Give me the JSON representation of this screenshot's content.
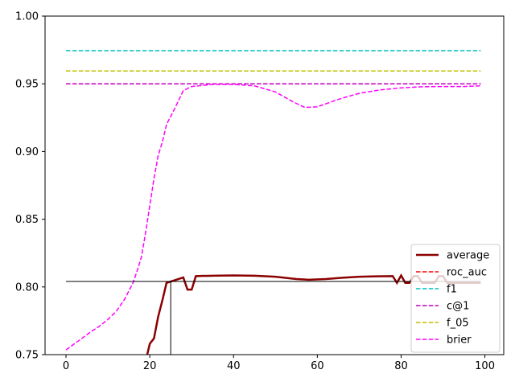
{
  "chart_data": {
    "type": "line",
    "title": "",
    "xlabel": "",
    "ylabel": "",
    "xlim": [
      -5,
      104.5
    ],
    "ylim": [
      0.75,
      1.0
    ],
    "grid": false,
    "legend_position": "lower-right",
    "xticks": [
      0,
      20,
      40,
      60,
      80,
      100
    ],
    "xtick_labels": [
      "0",
      "20",
      "40",
      "60",
      "80",
      "100"
    ],
    "yticks": [
      0.75,
      0.8,
      0.85,
      0.9,
      0.95,
      1.0
    ],
    "ytick_labels": [
      "0.75",
      "0.80",
      "0.85",
      "0.90",
      "0.95",
      "1.00"
    ],
    "series": [
      {
        "name": "average",
        "color": "#8b0000",
        "style": "solid",
        "width": 2.5,
        "x": [
          19,
          20,
          21,
          22,
          23,
          24,
          25,
          26,
          27,
          28,
          29,
          30,
          31,
          35,
          40,
          45,
          50,
          55,
          58,
          62,
          66,
          70,
          74,
          78,
          79,
          80,
          81,
          82,
          83,
          84,
          85,
          86,
          87,
          88,
          89,
          90,
          91,
          92,
          95,
          99
        ],
        "y": [
          0.745,
          0.758,
          0.762,
          0.778,
          0.79,
          0.803,
          0.804,
          0.805,
          0.806,
          0.807,
          0.798,
          0.798,
          0.808,
          0.8083,
          0.8085,
          0.8083,
          0.8075,
          0.8058,
          0.8053,
          0.8058,
          0.8068,
          0.8075,
          0.8078,
          0.808,
          0.803,
          0.8085,
          0.803,
          0.803,
          0.808,
          0.808,
          0.803,
          0.803,
          0.803,
          0.803,
          0.808,
          0.808,
          0.803,
          0.803,
          0.803,
          0.803
        ]
      },
      {
        "name": "roc_auc",
        "color": "#ff0000",
        "style": "dashed",
        "width": 1.5,
        "x": [
          0,
          99
        ],
        "y": [
          0.95,
          0.95
        ]
      },
      {
        "name": "f1",
        "color": "#00bfbf",
        "style": "dashed",
        "width": 1.5,
        "x": [
          0,
          99
        ],
        "y": [
          0.9745,
          0.9745
        ]
      },
      {
        "name": "c@1",
        "color": "#bf00bf",
        "style": "dashed",
        "width": 1.5,
        "x": [
          0,
          99
        ],
        "y": [
          0.95,
          0.95
        ]
      },
      {
        "name": "f_05",
        "color": "#bfbf00",
        "style": "dashed",
        "width": 1.5,
        "x": [
          0,
          99
        ],
        "y": [
          0.9595,
          0.9595
        ]
      },
      {
        "name": "brier",
        "color": "#ff00ff",
        "style": "dashed",
        "width": 1.5,
        "x": [
          0,
          2,
          4,
          6,
          8,
          10,
          12,
          14,
          16,
          17,
          18,
          19,
          20,
          21,
          22,
          23,
          24,
          25,
          26,
          28,
          30,
          35,
          40,
          45,
          50,
          54,
          57,
          60,
          65,
          70,
          75,
          80,
          85,
          90,
          95,
          99
        ],
        "y": [
          0.7535,
          0.758,
          0.7625,
          0.767,
          0.771,
          0.776,
          0.782,
          0.791,
          0.803,
          0.812,
          0.822,
          0.84,
          0.86,
          0.88,
          0.897,
          0.907,
          0.92,
          0.926,
          0.932,
          0.945,
          0.948,
          0.9495,
          0.9495,
          0.9485,
          0.944,
          0.937,
          0.9325,
          0.933,
          0.9385,
          0.943,
          0.9455,
          0.947,
          0.9478,
          0.948,
          0.948,
          0.9485
        ]
      },
      {
        "name": "",
        "color": "#000000",
        "style": "solid",
        "width": 1,
        "x": [
          0,
          99
        ],
        "y": [
          0.804,
          0.804
        ]
      },
      {
        "name": "",
        "color": "#000000",
        "style": "solid",
        "width": 1,
        "x": [
          25,
          25
        ],
        "y": [
          0.75,
          0.804
        ]
      }
    ]
  }
}
